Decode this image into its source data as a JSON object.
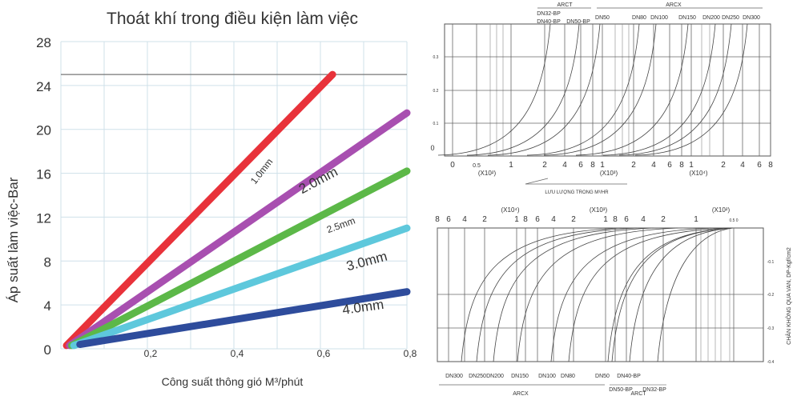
{
  "chart_data": [
    {
      "type": "line",
      "title": "Thoát khí trong điều kiện làm việc",
      "xlabel": "Công suất thông gió M³/phút",
      "ylabel": "Áp suất làm việc-Bar",
      "xlim": [
        0,
        0.8
      ],
      "ylim": [
        0,
        28
      ],
      "xticks": [
        "0,2",
        "0,4",
        "0,6",
        "0,8"
      ],
      "xtick_values": [
        0.2,
        0.4,
        0.6,
        0.8
      ],
      "yticks": [
        "0",
        "4",
        "8",
        "12",
        "16",
        "20",
        "24",
        "28"
      ],
      "ytick_values": [
        0,
        4,
        8,
        12,
        16,
        20,
        24,
        28
      ],
      "grid": true,
      "reference_line_y": 25,
      "series": [
        {
          "name": "1.0mm",
          "color": "#e8323a",
          "x": [
            0.013,
            0.628
          ],
          "y": [
            0.3,
            25
          ]
        },
        {
          "name": "2.0mm",
          "color": "#a84fb0",
          "x": [
            0.02,
            0.8
          ],
          "y": [
            0.3,
            21.5
          ]
        },
        {
          "name": "2.5mm",
          "color": "#5cb848",
          "x": [
            0.025,
            0.8
          ],
          "y": [
            0.3,
            16.2
          ]
        },
        {
          "name": "3.0mm",
          "color": "#5ec8dc",
          "x": [
            0.03,
            0.8
          ],
          "y": [
            0.3,
            11
          ]
        },
        {
          "name": "4.0mm",
          "color": "#2e4c9c",
          "x": [
            0.044,
            0.8
          ],
          "y": [
            0.4,
            5.2
          ]
        }
      ]
    },
    {
      "type": "line",
      "xlabel": "LƯU LƯỢNG TRONG M³/HR",
      "xscale": "log",
      "xticks": [
        "0",
        "0.5",
        "1",
        "2",
        "4",
        "6",
        "8",
        "1",
        "2",
        "4",
        "6",
        "8",
        "1",
        "2",
        "4",
        "6",
        "8"
      ],
      "multipliers": [
        "(X10²)",
        "(X10³)",
        "(X10⁴)"
      ],
      "yticks": [
        "0",
        "0.1",
        "0.2",
        "0.3"
      ],
      "groups": [
        {
          "name": "ARCT"
        },
        {
          "name": "ARCX"
        }
      ],
      "curve_labels": [
        "DN32-BP",
        "DN40-BP",
        "DN50-BP",
        "DN50",
        "DN80",
        "DN100",
        "DN150",
        "DN200",
        "DN250",
        "DN300"
      ],
      "grid": true
    },
    {
      "type": "line",
      "ylabel": "CHÂN KHÔNG QUA VAN, DP-Kgf/cm2",
      "xscale": "log",
      "xticks": [
        "8",
        "6",
        "4",
        "2",
        "1",
        "8",
        "6",
        "4",
        "2",
        "1",
        "8",
        "6",
        "4",
        "2",
        "1",
        "0.5 0"
      ],
      "multipliers": [
        "(X10⁴)",
        "(X10³)",
        "(X10²)"
      ],
      "yticks": [
        "-0.1",
        "-0.2",
        "-0.3",
        "-0.4"
      ],
      "groups": [
        {
          "name": "ARCX"
        },
        {
          "name": "ARCT"
        }
      ],
      "curve_labels": [
        "DN300",
        "DN250",
        "DN200",
        "DN150",
        "DN100",
        "DN80",
        "DN50",
        "DN40-BP",
        "DN50-BP",
        "DN32-BP"
      ],
      "grid": true
    }
  ]
}
